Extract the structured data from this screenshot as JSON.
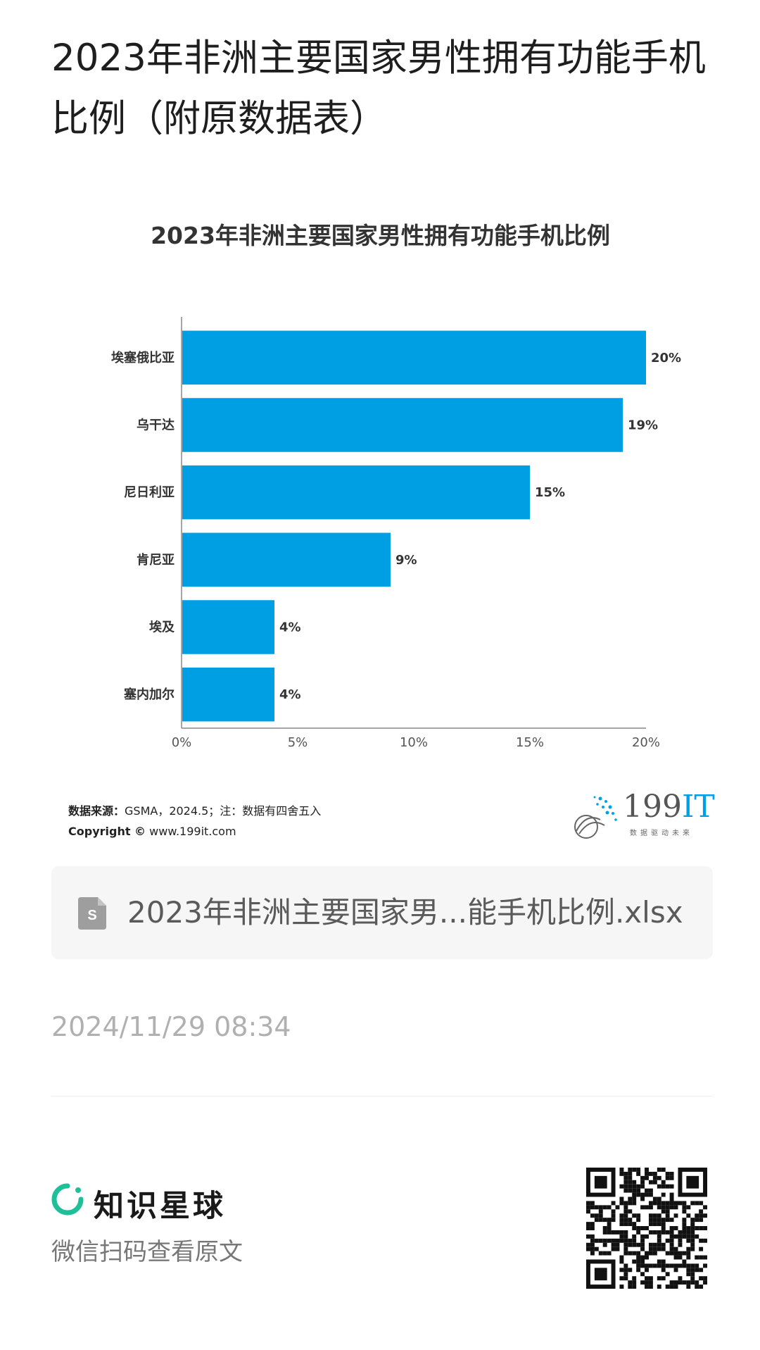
{
  "page": {
    "title": "2023年非洲主要国家男性拥有功能手机比例（附原数据表）"
  },
  "chart_data": {
    "type": "bar",
    "orientation": "horizontal",
    "title": "2023年非洲主要国家男性拥有功能手机比例",
    "categories": [
      "埃塞俄比亚",
      "乌干达",
      "尼日利亚",
      "肯尼亚",
      "埃及",
      "塞内加尔"
    ],
    "values": [
      20,
      19,
      15,
      9,
      4,
      4
    ],
    "data_labels": [
      "20%",
      "19%",
      "15%",
      "9%",
      "4%",
      "4%"
    ],
    "x_ticks": [
      "0%",
      "5%",
      "10%",
      "15%",
      "20%"
    ],
    "xlim": [
      0,
      20
    ],
    "xlabel": "",
    "ylabel": "",
    "grid": false,
    "bar_color": "#009fe3"
  },
  "source": {
    "label": "数据来源：",
    "text": "GSMA，2024.5；注：数据有四舍五入",
    "copyright_label": "Copyright ©",
    "copyright_url": "www.199it.com"
  },
  "logo": {
    "text_num": "199",
    "text_it": "IT",
    "subtitle": "数据驱动未来"
  },
  "attachment": {
    "icon": "spreadsheet-file-icon",
    "file_name": "2023年非洲主要国家男...能手机比例.xlsx"
  },
  "timestamp": "2024/11/29 08:34",
  "footer": {
    "brand_name": "知识星球",
    "brand_color": "#1fbf9a",
    "scan_hint": "微信扫码查看原文"
  }
}
